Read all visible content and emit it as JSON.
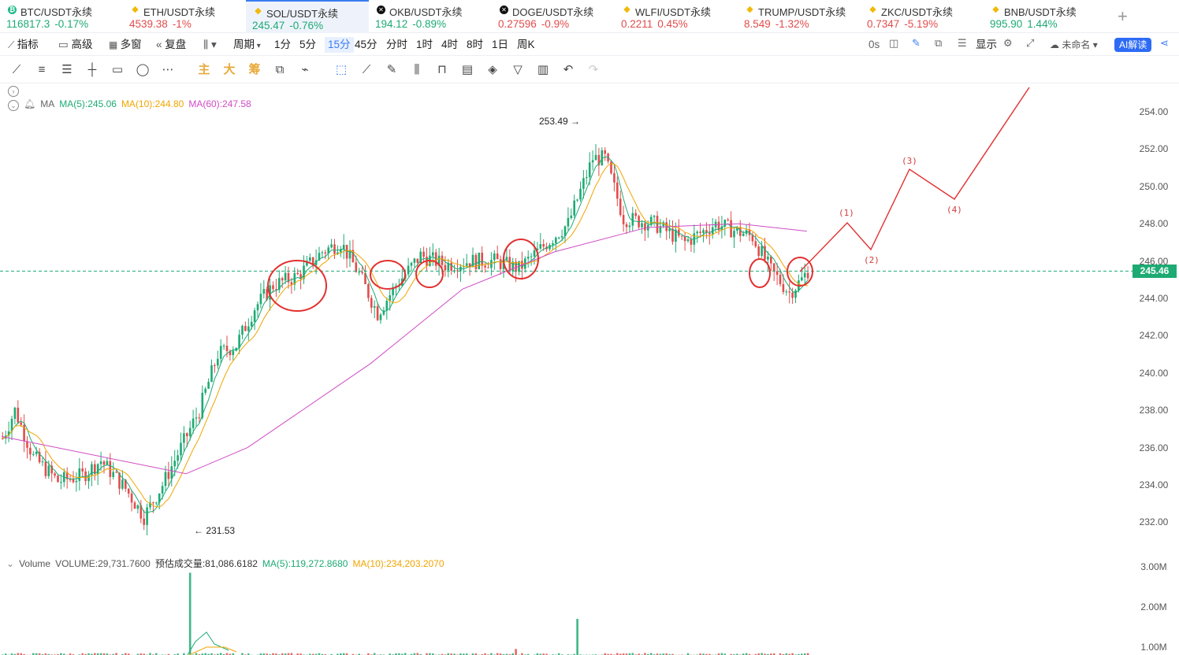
{
  "tickers": [
    {
      "name": "BTC/USDT永续",
      "price": "116817.3",
      "change": "-0.17%",
      "color": "up",
      "icon": "btc-icon"
    },
    {
      "name": "ETH/USDT永续",
      "price": "4539.38",
      "change": "-1%",
      "color": "dn",
      "icon": "binance-icon"
    },
    {
      "name": "SOL/USDT永续",
      "price": "245.47",
      "change": "-0.76%",
      "color": "up",
      "icon": "binance-icon"
    },
    {
      "name": "OKB/USDT永续",
      "price": "194.12",
      "change": "-0.89%",
      "color": "up",
      "icon": "okx-icon"
    },
    {
      "name": "DOGE/USDT永续",
      "price": "0.27596",
      "change": "-0.9%",
      "color": "dn",
      "icon": "okx-icon"
    },
    {
      "name": "WLFI/USDT永续",
      "price": "0.2211",
      "change": "0.45%",
      "color": "dn",
      "icon": "binance-icon"
    },
    {
      "name": "TRUMP/USDT永续",
      "price": "8.549",
      "change": "-1.32%",
      "color": "dn",
      "icon": "binance-icon"
    },
    {
      "name": "ZKC/USDT永续",
      "price": "0.7347",
      "change": "-5.19%",
      "color": "dn",
      "icon": "binance-icon"
    },
    {
      "name": "BNB/USDT永续",
      "price": "995.90",
      "change": "1.44%",
      "color": "up",
      "icon": "binance-icon"
    }
  ],
  "toolbar": {
    "indicators": "指标",
    "advanced": "高级",
    "multi": "多窗",
    "replay": "复盘",
    "period": "周期",
    "intervals": [
      "1分",
      "5分",
      "15分",
      "45分",
      "分时",
      "1时",
      "4时",
      "8时",
      "1日",
      "周K"
    ],
    "selected_interval": "15分",
    "countdown": "0s",
    "display": "显示",
    "unnamed": "未命名",
    "ai": "AI解读"
  },
  "drawtools": {
    "main": "主",
    "big": "大",
    "chip": "筹"
  },
  "legend": {
    "label": "MA",
    "ma5": "MA(5):245.06",
    "ma10": "MA(10):244.80",
    "ma60": "MA(60):247.58"
  },
  "volume_legend": {
    "label": "Volume",
    "vol": "VOLUME:29,731.7600",
    "est": "预估成交量:81,086.6182",
    "ma5": "MA(5):119,272.8680",
    "ma10": "MA(10):234,203.2070"
  },
  "price_axis": [
    "254.00",
    "252.00",
    "250.00",
    "248.00",
    "246.00",
    "244.00",
    "242.00",
    "240.00",
    "238.00",
    "236.00",
    "234.00",
    "232.00"
  ],
  "volume_axis": [
    "3.00M",
    "2.00M",
    "1.00M"
  ],
  "current_price": "245.46",
  "high_label": "253.49",
  "low_label": "231.53",
  "wave_labels": [
    "(1)",
    "(2)",
    "(3)",
    "(4)"
  ],
  "chart_data": {
    "type": "candlestick",
    "interval": "15分",
    "ylim": [
      230.5,
      255
    ],
    "high": 253.49,
    "low": 231.53,
    "last": 245.46,
    "ma": {
      "ma5": 245.06,
      "ma10": 244.8,
      "ma60": 247.58
    },
    "colors": {
      "up": "#1eaa73",
      "down": "#e24c4c",
      "ma5": "#1eaa73",
      "ma10": "#f0a500",
      "ma60": "#d04bc4"
    },
    "annotation": {
      "type": "elliott-wave-projection",
      "labels": [
        "(1)",
        "(2)",
        "(3)",
        "(4)"
      ],
      "color": "#d23b3b"
    }
  }
}
